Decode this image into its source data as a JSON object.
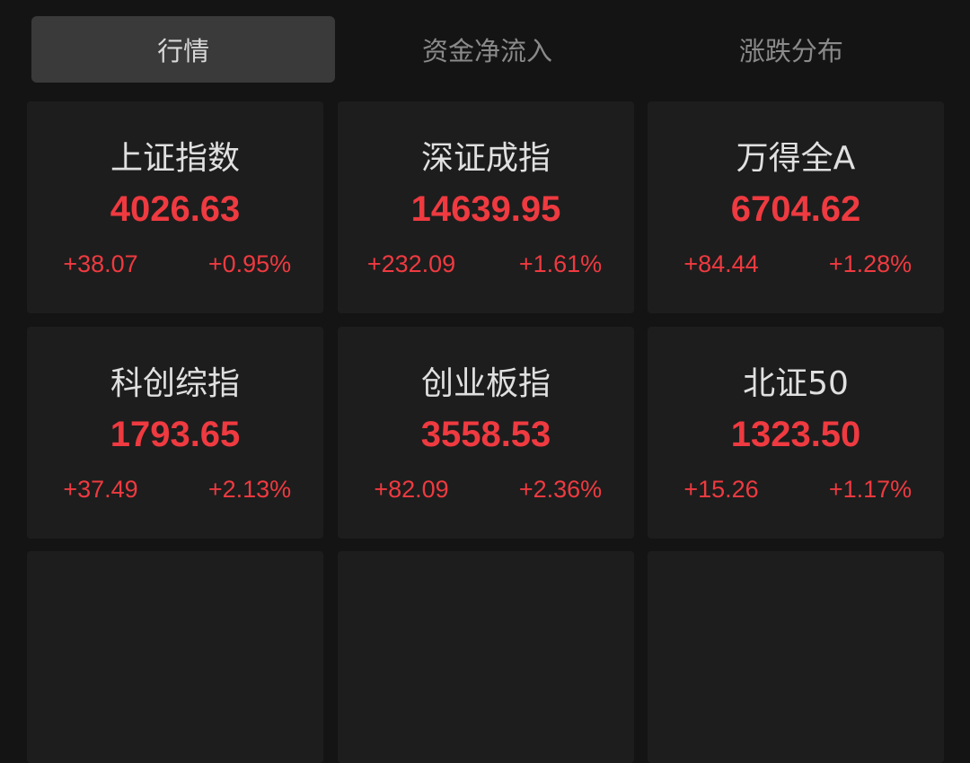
{
  "tabs": [
    {
      "label": "行情",
      "active": true
    },
    {
      "label": "资金净流入",
      "active": false
    },
    {
      "label": "涨跌分布",
      "active": false
    }
  ],
  "colors": {
    "up": "#ee3a40",
    "background": "#141414",
    "card": "#1d1d1d"
  },
  "indices": [
    {
      "name": "上证指数",
      "value": "4026.63",
      "change": "+38.07",
      "pct": "+0.95%"
    },
    {
      "name": "深证成指",
      "value": "14639.95",
      "change": "+232.09",
      "pct": "+1.61%"
    },
    {
      "name": "万得全A",
      "value": "6704.62",
      "change": "+84.44",
      "pct": "+1.28%"
    },
    {
      "name": "科创综指",
      "value": "1793.65",
      "change": "+37.49",
      "pct": "+2.13%"
    },
    {
      "name": "创业板指",
      "value": "3558.53",
      "change": "+82.09",
      "pct": "+2.36%"
    },
    {
      "name": "北证50",
      "value": "1323.50",
      "change": "+15.26",
      "pct": "+1.17%"
    }
  ]
}
